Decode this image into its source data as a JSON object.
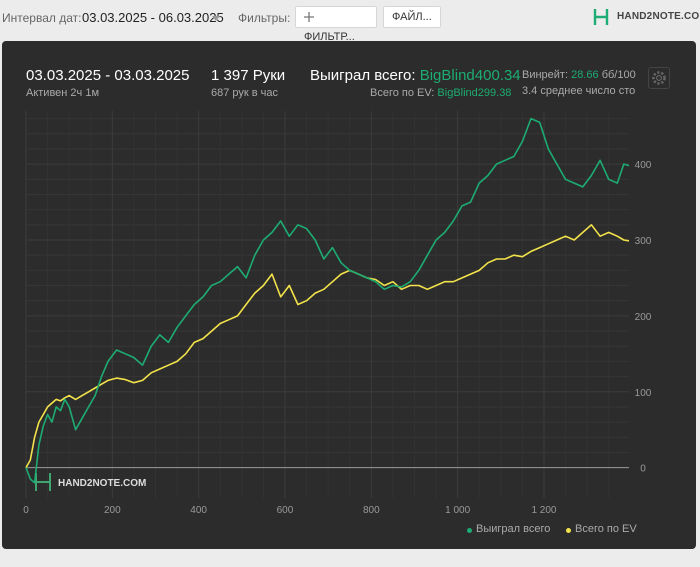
{
  "topbar": {
    "interval_label": "Интервал дат:",
    "date_range": "03.03.2025 - 06.03.2025",
    "filters_label": "Фильтры:",
    "filter_button": "ФИЛЬТР...",
    "filter_icon": "plus-icon",
    "file_button": "ФАЙЛ...",
    "logo_text": "HAND2NOTE.COM",
    "logo_icon": "hand2note-logo-icon"
  },
  "summary": {
    "period": "03.03.2025 - 03.03.2025",
    "active": "Активен 2ч 1м",
    "hands": "1 397 Руки",
    "hands_per_hour": "687 рук в час",
    "won_label": "Выиграл всего:",
    "won_value": "BigBlind400.34",
    "ev_label": "Всего по EV:",
    "ev_value": "BigBlind299.38",
    "winrate_label": "Винрейт:",
    "winrate_value": "28.66",
    "winrate_unit": "бб/100",
    "avg_players": "3.4 среднее число сто",
    "settings_icon": "gear-icon"
  },
  "colors": {
    "won": "#1dac73",
    "ev": "#f3e34a",
    "panel_bg": "#2c2c2c",
    "grid": "#3c3c3c",
    "zero_line": "#9a9a9a"
  },
  "chart_data": {
    "type": "line",
    "watermark": "HAND2NOTE.COM",
    "xlim": [
      0,
      1397
    ],
    "ylim": [
      -40,
      470
    ],
    "x_ticks": [
      "0",
      "200",
      "400",
      "600",
      "800",
      "1 000",
      "1 200"
    ],
    "x_tick_values": [
      0,
      200,
      400,
      600,
      800,
      1000,
      1200
    ],
    "y_ticks": [
      "0",
      "100",
      "200",
      "300",
      "400"
    ],
    "y_tick_values": [
      0,
      100,
      200,
      300,
      400
    ],
    "grid": true,
    "legend_position": "bottom-right",
    "x": [
      0,
      10,
      20,
      30,
      40,
      50,
      60,
      70,
      80,
      90,
      100,
      115,
      130,
      145,
      160,
      175,
      190,
      210,
      230,
      250,
      270,
      290,
      310,
      330,
      350,
      370,
      390,
      410,
      430,
      450,
      470,
      490,
      510,
      530,
      550,
      570,
      590,
      610,
      630,
      650,
      670,
      690,
      710,
      730,
      750,
      770,
      790,
      810,
      830,
      850,
      870,
      890,
      910,
      930,
      950,
      970,
      990,
      1010,
      1030,
      1050,
      1070,
      1090,
      1110,
      1130,
      1150,
      1170,
      1190,
      1210,
      1230,
      1250,
      1270,
      1290,
      1310,
      1330,
      1350,
      1370,
      1385,
      1397
    ],
    "series": [
      {
        "name": "Выиграл всего",
        "values": [
          0,
          -15,
          -20,
          30,
          55,
          70,
          60,
          80,
          75,
          90,
          80,
          50,
          65,
          80,
          95,
          120,
          140,
          155,
          150,
          145,
          135,
          160,
          175,
          165,
          185,
          200,
          215,
          225,
          240,
          245,
          255,
          265,
          250,
          280,
          300,
          310,
          325,
          305,
          320,
          315,
          300,
          275,
          290,
          270,
          260,
          255,
          250,
          245,
          235,
          240,
          238,
          245,
          260,
          280,
          300,
          310,
          325,
          345,
          350,
          375,
          385,
          400,
          405,
          410,
          430,
          460,
          455,
          420,
          400,
          380,
          375,
          370,
          385,
          405,
          380,
          375,
          400,
          398
        ]
      },
      {
        "name": "Всего по EV",
        "values": [
          0,
          10,
          40,
          60,
          70,
          80,
          85,
          90,
          88,
          92,
          95,
          90,
          95,
          100,
          105,
          110,
          115,
          118,
          116,
          112,
          115,
          125,
          130,
          135,
          140,
          150,
          165,
          170,
          180,
          190,
          195,
          200,
          215,
          230,
          240,
          255,
          225,
          240,
          215,
          220,
          230,
          235,
          245,
          255,
          260,
          255,
          250,
          248,
          240,
          245,
          235,
          240,
          240,
          235,
          240,
          245,
          245,
          250,
          255,
          260,
          270,
          275,
          275,
          280,
          278,
          285,
          290,
          295,
          300,
          305,
          300,
          310,
          320,
          305,
          310,
          305,
          300,
          299
        ]
      }
    ]
  }
}
